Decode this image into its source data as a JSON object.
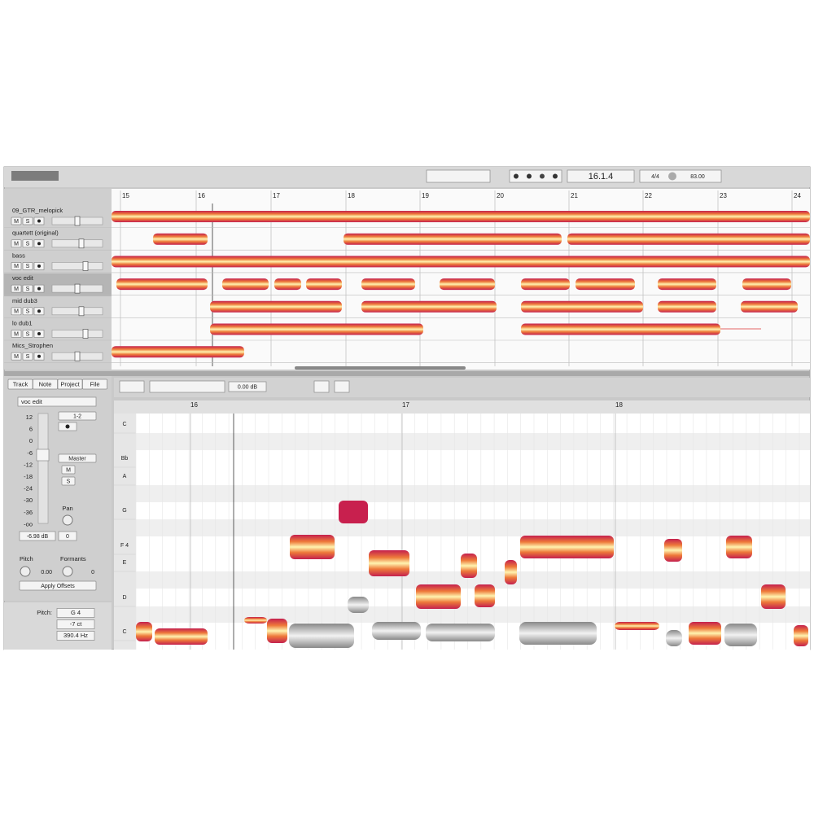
{
  "toolbar": {
    "position": "16.1.4",
    "meter": "4/4",
    "tempo": "83.00"
  },
  "arrangement": {
    "ruler": [
      "15",
      "16",
      "17",
      "18",
      "19",
      "20",
      "21",
      "22",
      "23",
      "24"
    ],
    "tracks": [
      {
        "name": "09_GTR_melopick",
        "mute": "M",
        "solo": "S"
      },
      {
        "name": "quartett (original)",
        "mute": "M",
        "solo": "S"
      },
      {
        "name": "bass",
        "mute": "M",
        "solo": "S"
      },
      {
        "name": "voc edit",
        "mute": "M",
        "solo": "S"
      },
      {
        "name": "mid dub3",
        "mute": "M",
        "solo": "S"
      },
      {
        "name": "lo dub1",
        "mute": "M",
        "solo": "S"
      },
      {
        "name": "Mics_Strophen",
        "mute": "M",
        "solo": "S"
      }
    ]
  },
  "inspector": {
    "tabs": [
      "Track",
      "Note",
      "Project",
      "File"
    ],
    "track_name": "voc edit",
    "meter_scale": [
      "12",
      "6",
      "0",
      "-6",
      "-12",
      "-18",
      "-24",
      "-30",
      "-36",
      "-oo"
    ],
    "output": "1-2",
    "send": "Master",
    "mute": "M",
    "solo": "S",
    "pan_label": "Pan",
    "volume": "-6.98 dB",
    "pan": "0",
    "pitch_label": "Pitch",
    "formants_label": "Formants",
    "pitch_offset": "0.00",
    "formant_offset": "0",
    "apply": "Apply Offsets"
  },
  "note_info": {
    "pitch_label": "Pitch:",
    "pitch": "G 4",
    "cents": "-7 ct",
    "frequency": "390.4 Hz"
  },
  "editor": {
    "gain": "0.00 dB",
    "ruler": [
      "16",
      "17",
      "18"
    ],
    "pitches": [
      "C",
      "Bb",
      "A",
      "G",
      "F 4",
      "E",
      "D",
      "C"
    ]
  }
}
